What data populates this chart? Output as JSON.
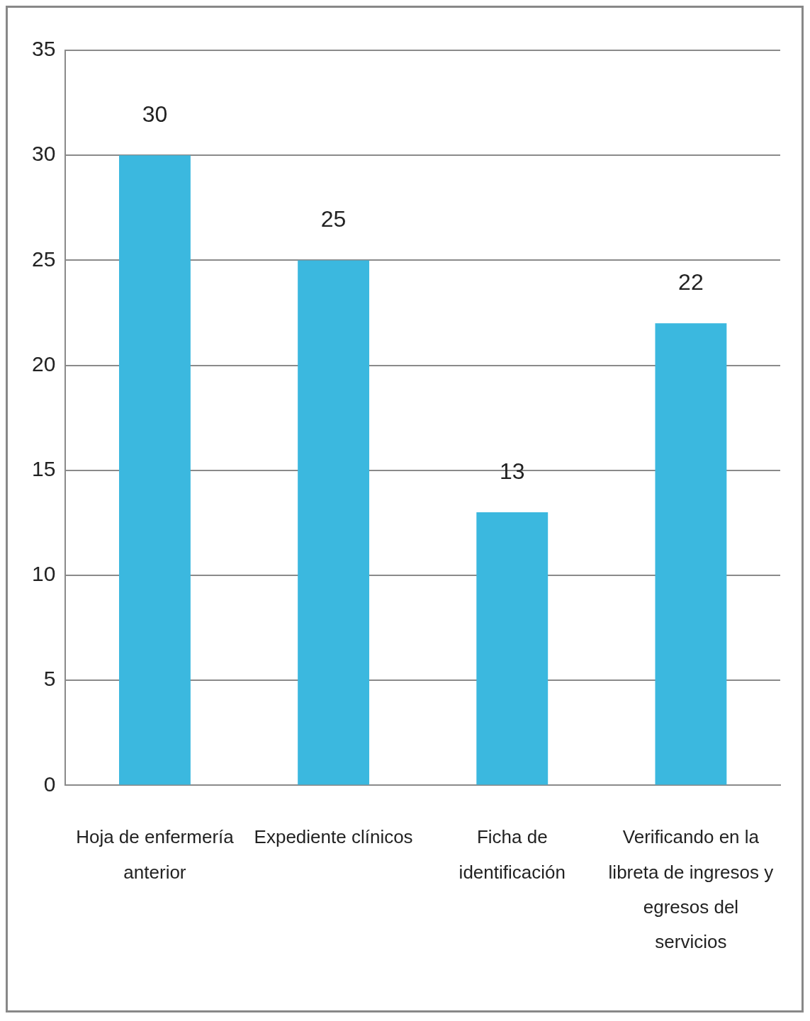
{
  "chart_data": {
    "type": "bar",
    "categories": [
      "Hoja de enfermería anterior",
      "Expediente clínicos",
      "Ficha de identificación",
      "Verificando en la libreta de ingresos y egresos del servicios"
    ],
    "values": [
      30,
      25,
      13,
      22
    ],
    "color": "#3bb8df",
    "ylim": [
      0,
      35
    ],
    "yticks": [
      0,
      5,
      10,
      15,
      20,
      25,
      30,
      35
    ],
    "grid": "y",
    "data_labels": true,
    "legend": false
  }
}
